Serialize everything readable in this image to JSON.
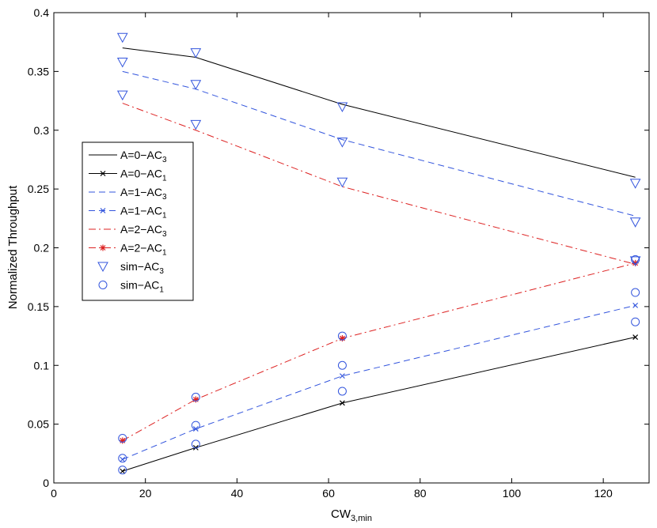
{
  "chart_data": {
    "type": "line",
    "xlabel": "CW",
    "xlabel_sub": "3,min",
    "ylabel": "Normalized Throughput",
    "xlim": [
      0,
      130
    ],
    "ylim": [
      0,
      0.4
    ],
    "xticks": [
      0,
      20,
      40,
      60,
      80,
      100,
      120
    ],
    "yticks": [
      0,
      0.05,
      0.1,
      0.15,
      0.2,
      0.25,
      0.3,
      0.35,
      0.4
    ],
    "ytick_labels": [
      "0",
      "0.05",
      "0.1",
      "0.15",
      "0.2",
      "0.25",
      "0.3",
      "0.35",
      "0.4"
    ],
    "grid": false,
    "legend_position": "middle-left",
    "series": [
      {
        "name": "A=0−AC",
        "sub": "3",
        "style": "solid",
        "color": "#000000",
        "marker": "none",
        "x": [
          15,
          31,
          63,
          127
        ],
        "values": [
          0.37,
          0.362,
          0.322,
          0.26
        ]
      },
      {
        "name": "A=0−AC",
        "sub": "1",
        "style": "solid",
        "color": "#000000",
        "marker": "x",
        "x": [
          15,
          31,
          63,
          127
        ],
        "values": [
          0.01,
          0.03,
          0.068,
          0.124
        ]
      },
      {
        "name": "A=1−AC",
        "sub": "3",
        "style": "dashed",
        "color": "#3355dd",
        "marker": "none",
        "x": [
          15,
          31,
          63,
          127
        ],
        "values": [
          0.35,
          0.335,
          0.292,
          0.227
        ]
      },
      {
        "name": "A=1−AC",
        "sub": "1",
        "style": "dashed",
        "color": "#3355dd",
        "marker": "x",
        "x": [
          15,
          31,
          63,
          127
        ],
        "values": [
          0.02,
          0.046,
          0.091,
          0.151
        ]
      },
      {
        "name": "A=2−AC",
        "sub": "3",
        "style": "dashdot",
        "color": "#dd2222",
        "marker": "none",
        "x": [
          15,
          31,
          63,
          127
        ],
        "values": [
          0.323,
          0.3,
          0.252,
          0.186
        ]
      },
      {
        "name": "A=2−AC",
        "sub": "1",
        "style": "dashdot",
        "color": "#dd2222",
        "marker": "star",
        "x": [
          15,
          31,
          63,
          127
        ],
        "values": [
          0.036,
          0.071,
          0.123,
          0.187
        ]
      },
      {
        "name": "sim−AC",
        "sub": "3",
        "style": "none",
        "color": "#3355dd",
        "marker": "triangle-down",
        "x": [
          15,
          15,
          15,
          31,
          31,
          31,
          63,
          63,
          63,
          127,
          127,
          127
        ],
        "values": [
          0.379,
          0.358,
          0.33,
          0.366,
          0.339,
          0.305,
          0.32,
          0.29,
          0.256,
          0.255,
          0.222,
          0.189
        ]
      },
      {
        "name": "sim−AC",
        "sub": "1",
        "style": "none",
        "color": "#3355dd",
        "marker": "circle",
        "x": [
          15,
          15,
          15,
          31,
          31,
          31,
          63,
          63,
          63,
          127,
          127,
          127
        ],
        "values": [
          0.011,
          0.021,
          0.038,
          0.033,
          0.049,
          0.073,
          0.078,
          0.1,
          0.125,
          0.137,
          0.162,
          0.19
        ]
      }
    ]
  }
}
